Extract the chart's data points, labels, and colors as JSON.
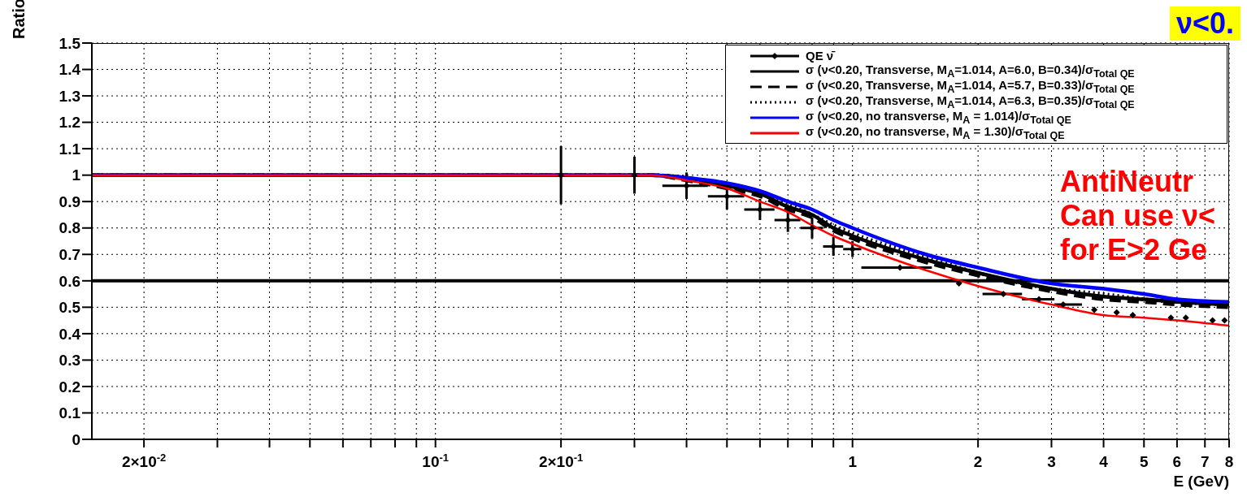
{
  "chart_data": {
    "type": "line",
    "xlabel": "E (GeV)",
    "ylabel": "Ratio",
    "log": "x",
    "grid": true,
    "legend": "top right",
    "xlim": [
      0.015,
      8
    ],
    "ylim": [
      0,
      1.5
    ],
    "xticks": [
      {
        "value": 0.02,
        "label": "2×10$^{-2}$"
      },
      {
        "value": 0.03,
        "label": null
      },
      {
        "value": 0.04,
        "label": null
      },
      {
        "value": 0.05,
        "label": null
      },
      {
        "value": 0.06,
        "label": null
      },
      {
        "value": 0.07,
        "label": null
      },
      {
        "value": 0.08,
        "label": null
      },
      {
        "value": 0.09,
        "label": null
      },
      {
        "value": 0.1,
        "label": "10$^{-1}$"
      },
      {
        "value": 0.2,
        "label": "2×10$^{-1}$"
      },
      {
        "value": 0.3,
        "label": null
      },
      {
        "value": 0.4,
        "label": null
      },
      {
        "value": 0.5,
        "label": null
      },
      {
        "value": 0.6,
        "label": null
      },
      {
        "value": 0.7,
        "label": null
      },
      {
        "value": 0.8,
        "label": null
      },
      {
        "value": 0.9,
        "label": null
      },
      1,
      2,
      3,
      4,
      5,
      6,
      7,
      8
    ],
    "yticks": [
      0,
      0.1,
      0.2,
      0.3,
      0.4,
      0.5,
      0.6,
      0.7,
      0.8,
      0.9,
      1,
      1.1,
      1.2,
      1.3,
      1.4,
      1.5
    ],
    "x": [
      0.015,
      0.33,
      0.4,
      0.5,
      0.6,
      0.7,
      0.8,
      0.9,
      1,
      1.5,
      2,
      3,
      4,
      5,
      6,
      8
    ],
    "series": [
      {
        "name": "QE ν̄",
        "type": "scatter",
        "marker": "diamond",
        "color": "#000000",
        "x": [
          0.2,
          0.3,
          0.4,
          0.5,
          0.6,
          0.7,
          0.8,
          0.9,
          1.0,
          1.3,
          1.8,
          2.3,
          2.8,
          3.2,
          3.8,
          4.3,
          4.7,
          5.8,
          6.3,
          7.3,
          7.8
        ],
        "values": [
          1.0,
          1.0,
          0.96,
          0.92,
          0.87,
          0.83,
          0.8,
          0.73,
          0.72,
          0.65,
          0.59,
          0.55,
          0.53,
          0.51,
          0.49,
          0.48,
          0.47,
          0.46,
          0.46,
          0.45,
          0.45
        ],
        "errors": [
          0.11,
          0.07,
          0.05,
          0.05,
          0.04,
          0.045,
          0.04,
          0.035,
          0.03,
          null,
          null,
          null,
          null,
          null,
          null,
          null,
          null,
          null,
          null,
          null,
          null
        ],
        "xerrors": [
          null,
          null,
          [
            0.35,
            0.45
          ],
          [
            0.45,
            0.55
          ],
          [
            0.55,
            0.65
          ],
          [
            0.65,
            0.75
          ],
          [
            0.75,
            0.85
          ],
          [
            0.85,
            0.95
          ],
          [
            0.95,
            1.05
          ],
          [
            1.05,
            1.55
          ],
          null,
          [
            2.05,
            2.55
          ],
          [
            2.55,
            3.05
          ],
          [
            3.05,
            3.55
          ],
          null,
          null,
          null,
          null,
          null,
          null,
          null
        ]
      },
      {
        "name": "σ (ν<0.20, Transverse, M$_{A}$=1.014, A=6.0, B=0.34)/σ$_{Total QE}$",
        "color": "#000000",
        "line_style": "solid",
        "values": [
          1,
          1,
          0.99,
          0.96,
          0.93,
          0.88,
          0.85,
          0.8,
          0.77,
          0.68,
          0.63,
          0.57,
          0.54,
          0.53,
          0.52,
          0.51
        ]
      },
      {
        "name": "σ (ν<0.20, Transverse, M$_{A}$=1.014, A=5.7, B=0.33)/σ$_{Total QE}$",
        "color": "#000000",
        "line_style": "dashed",
        "values": [
          1,
          1,
          0.98,
          0.95,
          0.92,
          0.87,
          0.84,
          0.79,
          0.76,
          0.67,
          0.62,
          0.56,
          0.53,
          0.52,
          0.51,
          0.5
        ]
      },
      {
        "name": "σ (ν<0.20, Transverse, M$_{A}$=1.014, A=6.3, B=0.35)/σ$_{Total QE}$",
        "color": "#000000",
        "line_style": "dotted",
        "values": [
          1,
          1,
          0.99,
          0.96,
          0.93,
          0.89,
          0.85,
          0.81,
          0.78,
          0.69,
          0.63,
          0.57,
          0.55,
          0.53,
          0.52,
          0.51
        ]
      },
      {
        "name": "σ (ν<0.20, no transverse, M$_{A}$ = 1.014)/σ$_{Total QE}$",
        "color": "#0000ff",
        "line_style": "solid",
        "values": [
          1,
          1,
          0.99,
          0.97,
          0.94,
          0.9,
          0.87,
          0.83,
          0.8,
          0.7,
          0.65,
          0.59,
          0.57,
          0.55,
          0.53,
          0.52
        ]
      },
      {
        "name": "σ (ν<0.20, no transverse, M$_{A}$ = 1.30)/σ$_{Total QE}$",
        "color": "#ff0000",
        "line_style": "solid",
        "values": [
          1,
          1,
          0.98,
          0.95,
          0.9,
          0.86,
          0.81,
          0.77,
          0.74,
          0.64,
          0.58,
          0.51,
          0.47,
          0.46,
          0.45,
          0.43
        ]
      }
    ],
    "ref_lines": [
      {
        "axis": "y",
        "value": 0.6,
        "color": "#000000"
      }
    ],
    "annotations": [
      "AntiNeutr",
      "Can use ν<",
      "for E>2 Ge",
      "ν<0."
    ]
  }
}
